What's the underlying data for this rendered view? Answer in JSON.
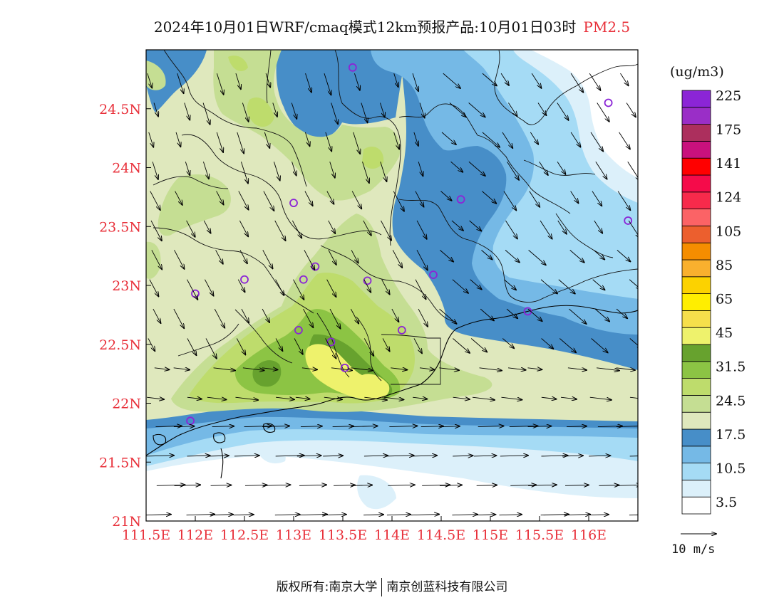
{
  "title": {
    "main": "2024年10月01日WRF/cmaq模式12km预报产品:10月01日03时",
    "species": "PM2.5"
  },
  "footer": {
    "left": "版权所有:南京大学",
    "right": "南京创蓝科技有限公司"
  },
  "axes": {
    "x_ticks": [
      "111.5E",
      "112E",
      "112.5E",
      "113E",
      "113.5E",
      "114E",
      "114.5E",
      "115E",
      "115.5E",
      "116E"
    ],
    "y_ticks": [
      "21N",
      "21.5N",
      "22N",
      "22.5N",
      "23N",
      "23.5N",
      "24N",
      "24.5N"
    ],
    "label_color": "#e8303a"
  },
  "colorbar": {
    "unit": "(ug/m3)",
    "bins_bottom_to_top": [
      {
        "color": "#ffffff",
        "label": "3.5"
      },
      {
        "color": "#dcf0fa",
        "label": ""
      },
      {
        "color": "#a5dbf5",
        "label": "10.5"
      },
      {
        "color": "#75b9e6",
        "label": ""
      },
      {
        "color": "#478ec8",
        "label": "17.5"
      },
      {
        "color": "#dfe8bd",
        "label": ""
      },
      {
        "color": "#c5de93",
        "label": "24.5"
      },
      {
        "color": "#bedc6c",
        "label": ""
      },
      {
        "color": "#8cc444",
        "label": "31.5"
      },
      {
        "color": "#67a22e",
        "label": ""
      },
      {
        "color": "#eef26c",
        "label": "45"
      },
      {
        "color": "#f6df4b",
        "label": ""
      },
      {
        "color": "#ffee00",
        "label": "65"
      },
      {
        "color": "#fcd200",
        "label": ""
      },
      {
        "color": "#f9b02e",
        "label": "85"
      },
      {
        "color": "#f58d00",
        "label": ""
      },
      {
        "color": "#ec5f2e",
        "label": "105"
      },
      {
        "color": "#fb6366",
        "label": ""
      },
      {
        "color": "#f72a4b",
        "label": "124"
      },
      {
        "color": "#f50b4a",
        "label": ""
      },
      {
        "color": "#ff0000",
        "label": "141"
      },
      {
        "color": "#c9117d",
        "label": ""
      },
      {
        "color": "#ac2f5d",
        "label": "175"
      },
      {
        "color": "#9a2ec7",
        "label": ""
      },
      {
        "color": "#8b25d6",
        "label": "225"
      }
    ]
  },
  "wind_reference": {
    "label": "10 m/s"
  },
  "map": {
    "extent": {
      "lon": [
        111.5,
        116.5
      ],
      "lat": [
        21.0,
        25.0
      ]
    },
    "colors": {
      "white": "#ffffff",
      "pale_blue": "#dcf0fa",
      "light_blue": "#a5dbf5",
      "mid_blue": "#75b9e6",
      "dark_blue": "#478ec8",
      "pale_green": "#dfe8bd",
      "light_green": "#c5de93",
      "yellow_green": "#bedc6c",
      "green": "#8cc444",
      "dark_green": "#67a22e",
      "yellow": "#eef26c",
      "station": "#8b25d6"
    },
    "stations": [
      {
        "lon": 113.6,
        "lat": 24.85
      },
      {
        "lon": 116.2,
        "lat": 24.55
      },
      {
        "lon": 113.0,
        "lat": 23.7
      },
      {
        "lon": 114.7,
        "lat": 23.73
      },
      {
        "lon": 116.4,
        "lat": 23.55
      },
      {
        "lon": 112.5,
        "lat": 23.05
      },
      {
        "lon": 112.0,
        "lat": 22.93
      },
      {
        "lon": 113.1,
        "lat": 23.05
      },
      {
        "lon": 113.22,
        "lat": 23.16
      },
      {
        "lon": 113.75,
        "lat": 23.04
      },
      {
        "lon": 114.42,
        "lat": 23.09
      },
      {
        "lon": 115.38,
        "lat": 22.78
      },
      {
        "lon": 113.05,
        "lat": 22.62
      },
      {
        "lon": 113.38,
        "lat": 22.52
      },
      {
        "lon": 114.1,
        "lat": 22.62
      },
      {
        "lon": 113.52,
        "lat": 22.3
      },
      {
        "lon": 111.95,
        "lat": 21.85
      }
    ]
  }
}
